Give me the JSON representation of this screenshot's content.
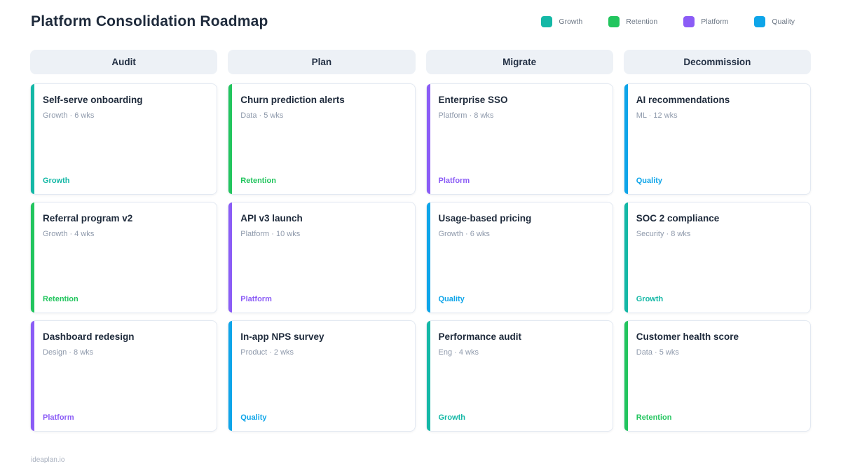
{
  "page": {
    "title": "Platform Consolidation Roadmap",
    "footer": "ideaplan.io"
  },
  "legend": {
    "items": [
      {
        "label": "Growth",
        "color": "#14b8a6"
      },
      {
        "label": "Retention",
        "color": "#22c55e"
      },
      {
        "label": "Platform",
        "color": "#8b5cf6"
      },
      {
        "label": "Quality",
        "color": "#0ea5e9"
      }
    ]
  },
  "tag_colors": {
    "Growth": "#14b8a6",
    "Retention": "#22c55e",
    "Platform": "#8b5cf6",
    "Quality": "#0ea5e9"
  },
  "board": {
    "columns": [
      {
        "header": "Audit",
        "cards": [
          {
            "title": "Self-serve onboarding",
            "meta": "Growth · 6 wks",
            "tag": "Growth"
          },
          {
            "title": "Referral program v2",
            "meta": "Growth · 4 wks",
            "tag": "Retention"
          },
          {
            "title": "Dashboard redesign",
            "meta": "Design · 8 wks",
            "tag": "Platform"
          }
        ]
      },
      {
        "header": "Plan",
        "cards": [
          {
            "title": "Churn prediction alerts",
            "meta": "Data · 5 wks",
            "tag": "Retention"
          },
          {
            "title": "API v3 launch",
            "meta": "Platform · 10 wks",
            "tag": "Platform"
          },
          {
            "title": "In-app NPS survey",
            "meta": "Product · 2 wks",
            "tag": "Quality"
          }
        ]
      },
      {
        "header": "Migrate",
        "cards": [
          {
            "title": "Enterprise SSO",
            "meta": "Platform · 8 wks",
            "tag": "Platform"
          },
          {
            "title": "Usage-based pricing",
            "meta": "Growth · 6 wks",
            "tag": "Quality"
          },
          {
            "title": "Performance audit",
            "meta": "Eng · 4 wks",
            "tag": "Growth"
          }
        ]
      },
      {
        "header": "Decommission",
        "cards": [
          {
            "title": "AI recommendations",
            "meta": "ML · 12 wks",
            "tag": "Quality"
          },
          {
            "title": "SOC 2 compliance",
            "meta": "Security · 8 wks",
            "tag": "Growth"
          },
          {
            "title": "Customer health score",
            "meta": "Data · 5 wks",
            "tag": "Retention"
          }
        ]
      }
    ]
  }
}
